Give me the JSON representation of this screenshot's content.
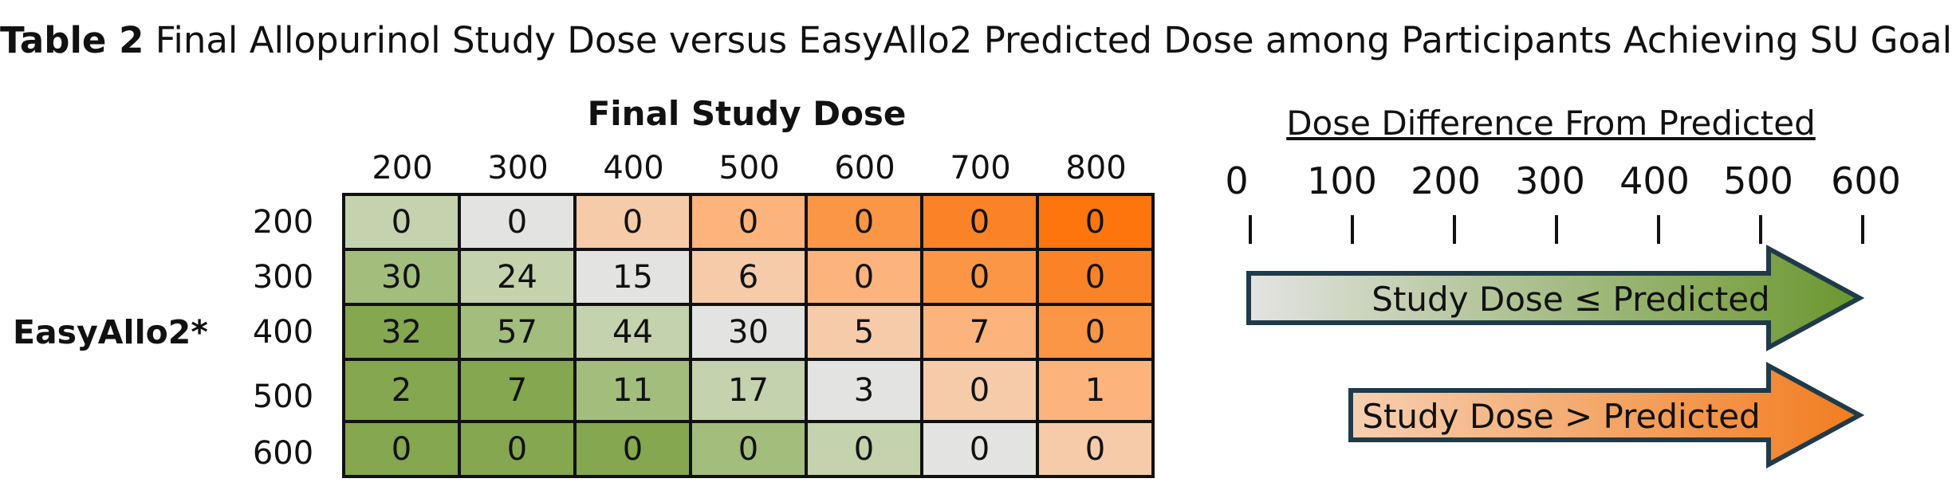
{
  "title": {
    "bold": "Table 2",
    "rest": " Final Allopurinol Study Dose versus EasyAllo2 Predicted Dose among Participants Achieving SU Goal"
  },
  "table": {
    "column_header": "Final Study Dose",
    "row_header": "EasyAllo2*",
    "columns": [
      "200",
      "300",
      "400",
      "500",
      "600",
      "700",
      "800"
    ],
    "rows": [
      {
        "label": "200",
        "cells": [
          "0",
          "0",
          "0",
          "0",
          "0",
          "0",
          "0"
        ]
      },
      {
        "label": "300",
        "cells": [
          "30",
          "24",
          "15",
          "6",
          "0",
          "0",
          "0"
        ]
      },
      {
        "label": "400",
        "cells": [
          "32",
          "57",
          "44",
          "30",
          "5",
          "7",
          "0"
        ]
      },
      {
        "label": "500",
        "cells": [
          "2",
          "7",
          "11",
          "17",
          "3",
          "0",
          "1"
        ]
      },
      {
        "label": "600",
        "cells": [
          "0",
          "0",
          "0",
          "0",
          "0",
          "0",
          "0"
        ]
      }
    ],
    "colors": {
      "diagonal": "#e3e3e1",
      "green": [
        "#c4d2ad",
        "#a3bd7d",
        "#84a74f"
      ],
      "orange": [
        "#f5cba9",
        "#fdb37c",
        "#fb9647",
        "#fb8327",
        "#fc760d",
        "#e46b0d"
      ]
    }
  },
  "legend": {
    "title": "Dose Difference From Predicted",
    "scale": [
      "0",
      "100",
      "200",
      "300",
      "400",
      "500",
      "600"
    ],
    "arrows": [
      {
        "label": "Study Dose ≤ Predicted",
        "from": "#e3e3e1",
        "to": "#6a972d"
      },
      {
        "label": "Study Dose > Predicted",
        "from": "#f6d0b2",
        "to": "#f27c1e"
      }
    ],
    "outline": "#1f3b4a"
  }
}
